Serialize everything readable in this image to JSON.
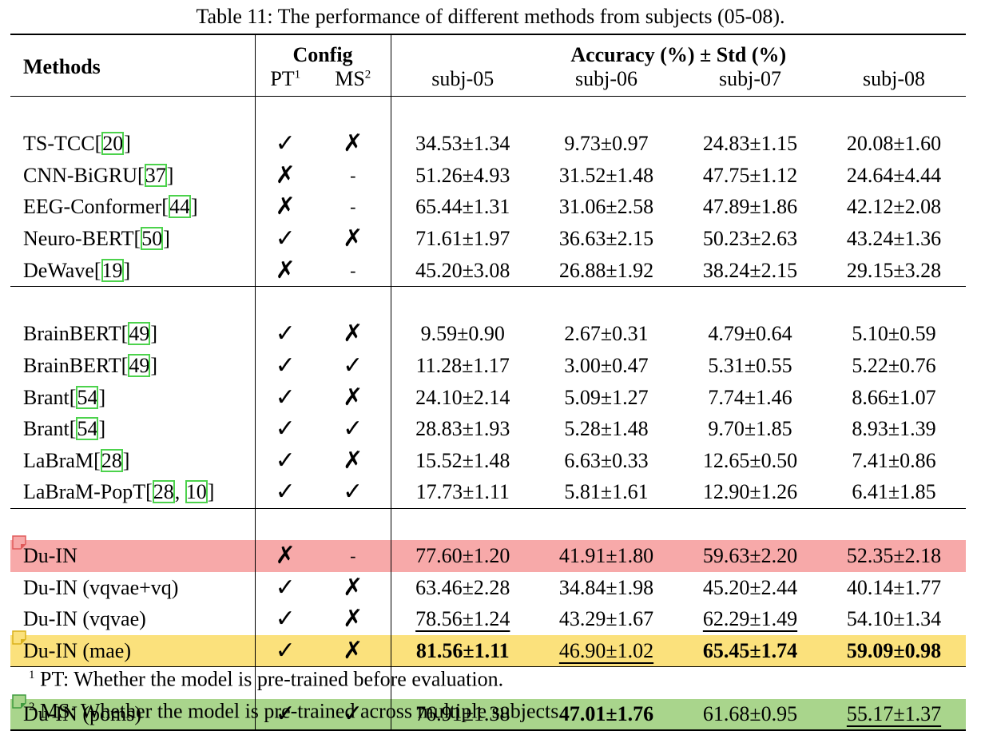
{
  "caption": "Table 11: The performance of different methods from subjects (05-08).",
  "header": {
    "methods": "Methods",
    "config": "Config",
    "pt": "PT",
    "pt_sup": "1",
    "ms": "MS",
    "ms_sup": "2",
    "accuracy": "Accuracy (%) ± Std (%)",
    "subjects": [
      "subj-05",
      "subj-06",
      "subj-07",
      "subj-08"
    ]
  },
  "groups": [
    [
      {
        "name": "TS-TCC",
        "refs": [
          "20"
        ],
        "pt": "✓",
        "ms": "✗",
        "vals": [
          "34.53±1.34",
          "9.73±0.97",
          "24.83±1.15",
          "20.08±1.60"
        ]
      },
      {
        "name": "CNN-BiGRU",
        "refs": [
          "37"
        ],
        "pt": "✗",
        "ms": "-",
        "vals": [
          "51.26±4.93",
          "31.52±1.48",
          "47.75±1.12",
          "24.64±4.44"
        ]
      },
      {
        "name": "EEG-Conformer",
        "refs": [
          "44"
        ],
        "pt": "✗",
        "ms": "-",
        "vals": [
          "65.44±1.31",
          "31.06±2.58",
          "47.89±1.86",
          "42.12±2.08"
        ]
      },
      {
        "name": "Neuro-BERT",
        "refs": [
          "50"
        ],
        "pt": "✓",
        "ms": "✗",
        "vals": [
          "71.61±1.97",
          "36.63±2.15",
          "50.23±2.63",
          "43.24±1.36"
        ]
      },
      {
        "name": "DeWave",
        "refs": [
          "19"
        ],
        "pt": "✗",
        "ms": "-",
        "vals": [
          "45.20±3.08",
          "26.88±1.92",
          "38.24±2.15",
          "29.15±3.28"
        ]
      }
    ],
    [
      {
        "name": "BrainBERT",
        "refs": [
          "49"
        ],
        "pt": "✓",
        "ms": "✗",
        "vals": [
          "9.59±0.90",
          "2.67±0.31",
          "4.79±0.64",
          "5.10±0.59"
        ]
      },
      {
        "name": "BrainBERT",
        "refs": [
          "49"
        ],
        "pt": "✓",
        "ms": "✓",
        "vals": [
          "11.28±1.17",
          "3.00±0.47",
          "5.31±0.55",
          "5.22±0.76"
        ]
      },
      {
        "name": "Brant",
        "refs": [
          "54"
        ],
        "pt": "✓",
        "ms": "✗",
        "vals": [
          "24.10±2.14",
          "5.09±1.27",
          "7.74±1.46",
          "8.66±1.07"
        ]
      },
      {
        "name": "Brant",
        "refs": [
          "54"
        ],
        "pt": "✓",
        "ms": "✓",
        "vals": [
          "28.83±1.93",
          "5.28±1.48",
          "9.70±1.85",
          "8.93±1.39"
        ]
      },
      {
        "name": "LaBraM",
        "refs": [
          "28"
        ],
        "pt": "✓",
        "ms": "✗",
        "vals": [
          "15.52±1.48",
          "6.63±0.33",
          "12.65±0.50",
          "7.41±0.86"
        ]
      },
      {
        "name": "LaBraM-PopT",
        "refs": [
          "28",
          "10"
        ],
        "pt": "✓",
        "ms": "✓",
        "vals": [
          "17.73±1.11",
          "5.81±1.61",
          "12.90±1.26",
          "6.41±1.85"
        ]
      }
    ],
    [
      {
        "name": "Du-IN",
        "refs": [],
        "highlight": "red",
        "pt": "✗",
        "ms": "-",
        "vals": [
          "77.60±1.20",
          "41.91±1.80",
          "59.63±2.20",
          "52.35±2.18"
        ],
        "style": [
          "",
          "",
          "",
          ""
        ]
      },
      {
        "name": "Du-IN (vqvae+vq)",
        "refs": [],
        "pt": "✓",
        "ms": "✗",
        "vals": [
          "63.46±2.28",
          "34.84±1.98",
          "45.20±2.44",
          "40.14±1.77"
        ],
        "style": [
          "",
          "",
          "",
          ""
        ]
      },
      {
        "name": "Du-IN (vqvae)",
        "refs": [],
        "pt": "✓",
        "ms": "✗",
        "vals": [
          "78.56±1.24",
          "43.29±1.67",
          "62.29±1.49",
          "54.10±1.34"
        ],
        "style": [
          "u",
          "",
          "u",
          ""
        ]
      },
      {
        "name": "Du-IN (mae)",
        "refs": [],
        "highlight": "yellow",
        "pt": "✓",
        "ms": "✗",
        "vals": [
          "81.56±1.11",
          "46.90±1.02",
          "65.45±1.74",
          "59.09±0.98"
        ],
        "style": [
          "b",
          "u",
          "b",
          "b"
        ]
      }
    ],
    [
      {
        "name": "Du-IN (poms)",
        "refs": [],
        "highlight": "green",
        "pt": "✓",
        "ms": "✓",
        "vals": [
          "76.91±1.38",
          "47.01±1.76",
          "61.68±0.95",
          "55.17±1.37"
        ],
        "style": [
          "",
          "b",
          "",
          "u"
        ]
      }
    ]
  ],
  "footnotes": [
    {
      "mark": "1",
      "text": "PT: Whether the model is pre-trained before evaluation."
    },
    {
      "mark": "2",
      "text": "MS: Whether the model is pre-trained across multiple subjects."
    }
  ],
  "colors": {
    "red": "#f7a9a9",
    "yellow": "#fbe17c",
    "green": "#a9d58c",
    "ref_box": "#4cd24c"
  }
}
